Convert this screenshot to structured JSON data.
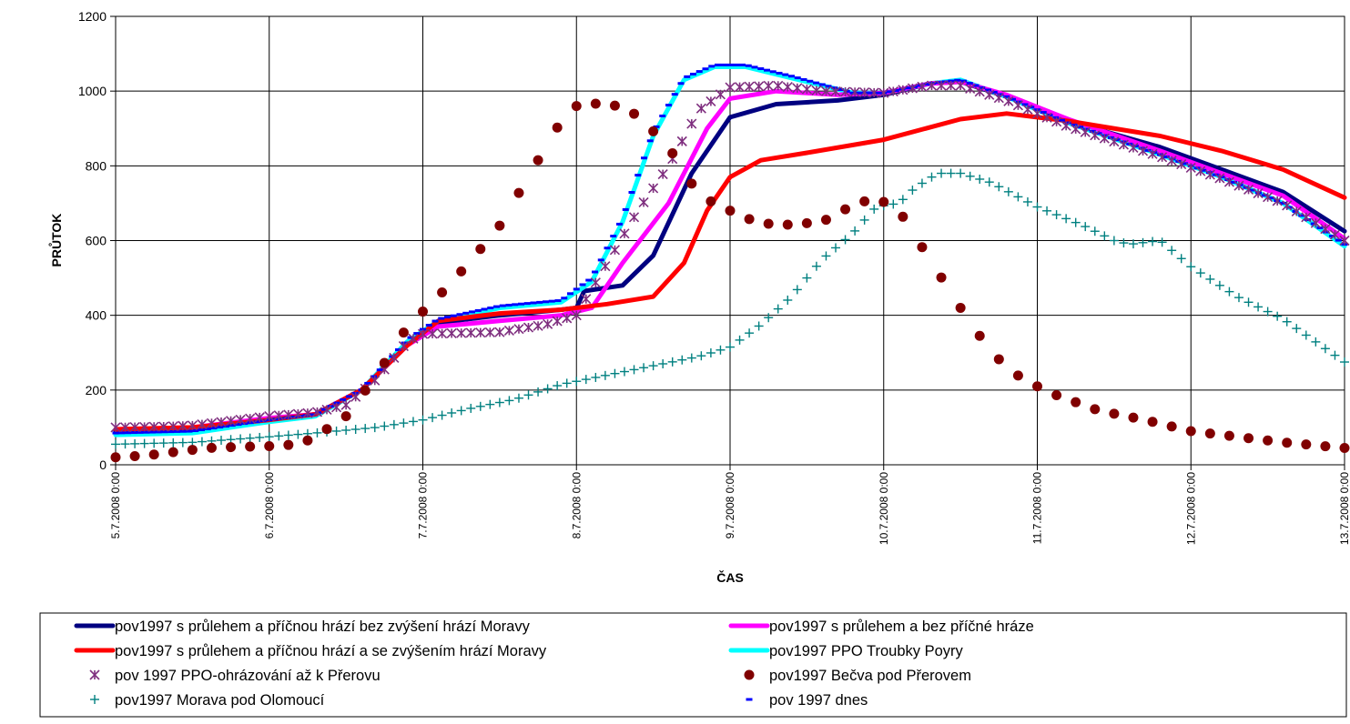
{
  "chart_data": {
    "type": "line",
    "title": "",
    "xlabel": "ČAS",
    "ylabel": "PRŮTOK",
    "ylim": [
      0,
      1200
    ],
    "yticks": [
      0,
      200,
      400,
      600,
      800,
      1000,
      1200
    ],
    "xlim": [
      0,
      8
    ],
    "x_tick_labels": [
      "5.7.2008 0:00",
      "6.7.2008 0:00",
      "7.7.2008 0:00",
      "8.7.2008 0:00",
      "9.7.2008 0:00",
      "10.7.2008 0:00",
      "11.7.2008 0:00",
      "12.7.2008 0:00",
      "13.7.2008 0:00"
    ],
    "x_unit_note": "x values are days after 5.7.2008 0:00",
    "grid": true,
    "legend_position": "bottom",
    "series": [
      {
        "name": "pov1997 s průlehem a příčnou hrází bez zvýšení hrází Moravy",
        "color": "#000080",
        "marker": "line",
        "points": [
          [
            0,
            90
          ],
          [
            0.5,
            95
          ],
          [
            1,
            120
          ],
          [
            1.3,
            135
          ],
          [
            1.6,
            200
          ],
          [
            1.9,
            320
          ],
          [
            2.1,
            380
          ],
          [
            2.5,
            400
          ],
          [
            2.9,
            415
          ],
          [
            3.0,
            420
          ],
          [
            3.05,
            465
          ],
          [
            3.3,
            480
          ],
          [
            3.5,
            560
          ],
          [
            3.75,
            780
          ],
          [
            4.0,
            930
          ],
          [
            4.3,
            965
          ],
          [
            4.7,
            975
          ],
          [
            5.0,
            990
          ],
          [
            5.3,
            1020
          ],
          [
            5.5,
            1025
          ],
          [
            5.8,
            985
          ],
          [
            6.2,
            920
          ],
          [
            6.8,
            850
          ],
          [
            7.2,
            790
          ],
          [
            7.6,
            730
          ],
          [
            8,
            625
          ]
        ]
      },
      {
        "name": "pov1997 s průlehem a bez příčné hráze",
        "color": "#ff00ff",
        "marker": "line",
        "points": [
          [
            0,
            95
          ],
          [
            0.5,
            100
          ],
          [
            1,
            125
          ],
          [
            1.3,
            135
          ],
          [
            1.6,
            200
          ],
          [
            1.9,
            320
          ],
          [
            2.1,
            370
          ],
          [
            2.5,
            385
          ],
          [
            2.9,
            400
          ],
          [
            3.1,
            420
          ],
          [
            3.3,
            540
          ],
          [
            3.6,
            700
          ],
          [
            3.85,
            900
          ],
          [
            4.0,
            980
          ],
          [
            4.3,
            1000
          ],
          [
            4.7,
            990
          ],
          [
            5.0,
            995
          ],
          [
            5.3,
            1020
          ],
          [
            5.5,
            1025
          ],
          [
            5.8,
            990
          ],
          [
            6.2,
            925
          ],
          [
            6.8,
            840
          ],
          [
            7.2,
            780
          ],
          [
            7.6,
            720
          ],
          [
            8,
            605
          ]
        ]
      },
      {
        "name": "pov1997 s průlehem a příčnou hrází a se zvýšením hrází Moravy",
        "color": "#ff0000",
        "marker": "line",
        "points": [
          [
            0,
            95
          ],
          [
            0.5,
            100
          ],
          [
            1,
            120
          ],
          [
            1.3,
            135
          ],
          [
            1.6,
            200
          ],
          [
            1.9,
            320
          ],
          [
            2.1,
            385
          ],
          [
            2.5,
            405
          ],
          [
            2.9,
            415
          ],
          [
            3.2,
            430
          ],
          [
            3.5,
            450
          ],
          [
            3.7,
            540
          ],
          [
            3.85,
            680
          ],
          [
            4.0,
            770
          ],
          [
            4.2,
            815
          ],
          [
            4.5,
            835
          ],
          [
            5.0,
            870
          ],
          [
            5.5,
            925
          ],
          [
            5.8,
            940
          ],
          [
            6.2,
            920
          ],
          [
            6.8,
            880
          ],
          [
            7.2,
            840
          ],
          [
            7.6,
            790
          ],
          [
            8,
            715
          ]
        ]
      },
      {
        "name": "pov1997 PPO Troubky Poyry",
        "color": "#00ffff",
        "marker": "line",
        "points": [
          [
            0,
            80
          ],
          [
            0.5,
            85
          ],
          [
            1,
            115
          ],
          [
            1.3,
            130
          ],
          [
            1.6,
            200
          ],
          [
            1.9,
            330
          ],
          [
            2.1,
            385
          ],
          [
            2.5,
            420
          ],
          [
            2.9,
            435
          ],
          [
            3.1,
            490
          ],
          [
            3.3,
            650
          ],
          [
            3.5,
            880
          ],
          [
            3.7,
            1030
          ],
          [
            3.9,
            1065
          ],
          [
            4.1,
            1065
          ],
          [
            4.4,
            1035
          ],
          [
            4.8,
            995
          ],
          [
            5.0,
            995
          ],
          [
            5.3,
            1020
          ],
          [
            5.5,
            1030
          ],
          [
            5.8,
            985
          ],
          [
            6.2,
            915
          ],
          [
            6.8,
            830
          ],
          [
            7.2,
            770
          ],
          [
            7.6,
            700
          ],
          [
            8,
            585
          ]
        ]
      },
      {
        "name": "pov 1997 PPO-ohrázování až k Přerovu",
        "color": "#7f2f7f",
        "marker": "star",
        "points": [
          [
            0,
            100
          ],
          [
            0.3,
            102
          ],
          [
            0.5,
            105
          ],
          [
            0.8,
            120
          ],
          [
            1.0,
            130
          ],
          [
            1.3,
            140
          ],
          [
            1.5,
            160
          ],
          [
            1.7,
            230
          ],
          [
            1.9,
            330
          ],
          [
            2.0,
            350
          ],
          [
            2.5,
            355
          ],
          [
            2.8,
            375
          ],
          [
            3.0,
            400
          ],
          [
            3.2,
            540
          ],
          [
            3.4,
            680
          ],
          [
            3.6,
            800
          ],
          [
            3.8,
            950
          ],
          [
            4.0,
            1010
          ],
          [
            4.3,
            1015
          ],
          [
            4.6,
            1000
          ],
          [
            5.0,
            995
          ],
          [
            5.3,
            1015
          ],
          [
            5.5,
            1015
          ],
          [
            5.8,
            975
          ],
          [
            6.2,
            905
          ],
          [
            6.8,
            825
          ],
          [
            7.2,
            765
          ],
          [
            7.6,
            700
          ],
          [
            8,
            600
          ]
        ]
      },
      {
        "name": "pov1997 Bečva pod Přerovem",
        "color": "#800000",
        "marker": "dot",
        "points": [
          [
            0,
            20
          ],
          [
            0.2,
            25
          ],
          [
            0.4,
            35
          ],
          [
            0.6,
            45
          ],
          [
            0.8,
            48
          ],
          [
            1.0,
            50
          ],
          [
            1.2,
            55
          ],
          [
            1.3,
            75
          ],
          [
            1.5,
            130
          ],
          [
            1.7,
            240
          ],
          [
            1.9,
            370
          ],
          [
            2.1,
            450
          ],
          [
            2.3,
            540
          ],
          [
            2.5,
            640
          ],
          [
            2.7,
            780
          ],
          [
            2.9,
            920
          ],
          [
            3.0,
            960
          ],
          [
            3.2,
            970
          ],
          [
            3.4,
            935
          ],
          [
            3.6,
            850
          ],
          [
            3.8,
            720
          ],
          [
            4.1,
            660
          ],
          [
            4.3,
            640
          ],
          [
            4.6,
            650
          ],
          [
            4.8,
            695
          ],
          [
            4.95,
            715
          ],
          [
            5.1,
            680
          ],
          [
            5.3,
            550
          ],
          [
            5.5,
            420
          ],
          [
            5.7,
            300
          ],
          [
            5.9,
            230
          ],
          [
            6.1,
            190
          ],
          [
            6.4,
            145
          ],
          [
            6.7,
            120
          ],
          [
            7.0,
            90
          ],
          [
            7.3,
            75
          ],
          [
            7.6,
            60
          ],
          [
            8,
            45
          ]
        ]
      },
      {
        "name": "pov1997 Morava pod Olomoucí",
        "color": "#008080",
        "marker": "plus",
        "points": [
          [
            0,
            55
          ],
          [
            0.5,
            60
          ],
          [
            1,
            75
          ],
          [
            1.3,
            85
          ],
          [
            1.7,
            100
          ],
          [
            2.0,
            120
          ],
          [
            2.3,
            150
          ],
          [
            2.6,
            175
          ],
          [
            2.9,
            215
          ],
          [
            3.2,
            240
          ],
          [
            3.5,
            265
          ],
          [
            3.8,
            290
          ],
          [
            4.0,
            315
          ],
          [
            4.2,
            375
          ],
          [
            4.4,
            450
          ],
          [
            4.6,
            550
          ],
          [
            4.8,
            620
          ],
          [
            4.95,
            690
          ],
          [
            5.1,
            700
          ],
          [
            5.2,
            740
          ],
          [
            5.35,
            780
          ],
          [
            5.5,
            780
          ],
          [
            5.7,
            755
          ],
          [
            6.0,
            690
          ],
          [
            6.3,
            640
          ],
          [
            6.5,
            600
          ],
          [
            6.6,
            590
          ],
          [
            6.8,
            600
          ],
          [
            7.0,
            530
          ],
          [
            7.3,
            450
          ],
          [
            7.6,
            390
          ],
          [
            8,
            275
          ]
        ]
      },
      {
        "name": "pov 1997 dnes",
        "color": "#0000ff",
        "marker": "dash",
        "points": [
          [
            0,
            85
          ],
          [
            0.5,
            90
          ],
          [
            1,
            120
          ],
          [
            1.3,
            135
          ],
          [
            1.6,
            200
          ],
          [
            1.9,
            335
          ],
          [
            2.1,
            390
          ],
          [
            2.5,
            425
          ],
          [
            2.9,
            440
          ],
          [
            3.1,
            500
          ],
          [
            3.3,
            660
          ],
          [
            3.5,
            890
          ],
          [
            3.7,
            1035
          ],
          [
            3.9,
            1070
          ],
          [
            4.1,
            1070
          ],
          [
            4.4,
            1040
          ],
          [
            4.8,
            995
          ],
          [
            5.0,
            995
          ],
          [
            5.3,
            1020
          ],
          [
            5.5,
            1030
          ],
          [
            5.8,
            985
          ],
          [
            6.2,
            915
          ],
          [
            6.8,
            830
          ],
          [
            7.2,
            770
          ],
          [
            7.6,
            700
          ],
          [
            8,
            590
          ]
        ]
      }
    ]
  }
}
